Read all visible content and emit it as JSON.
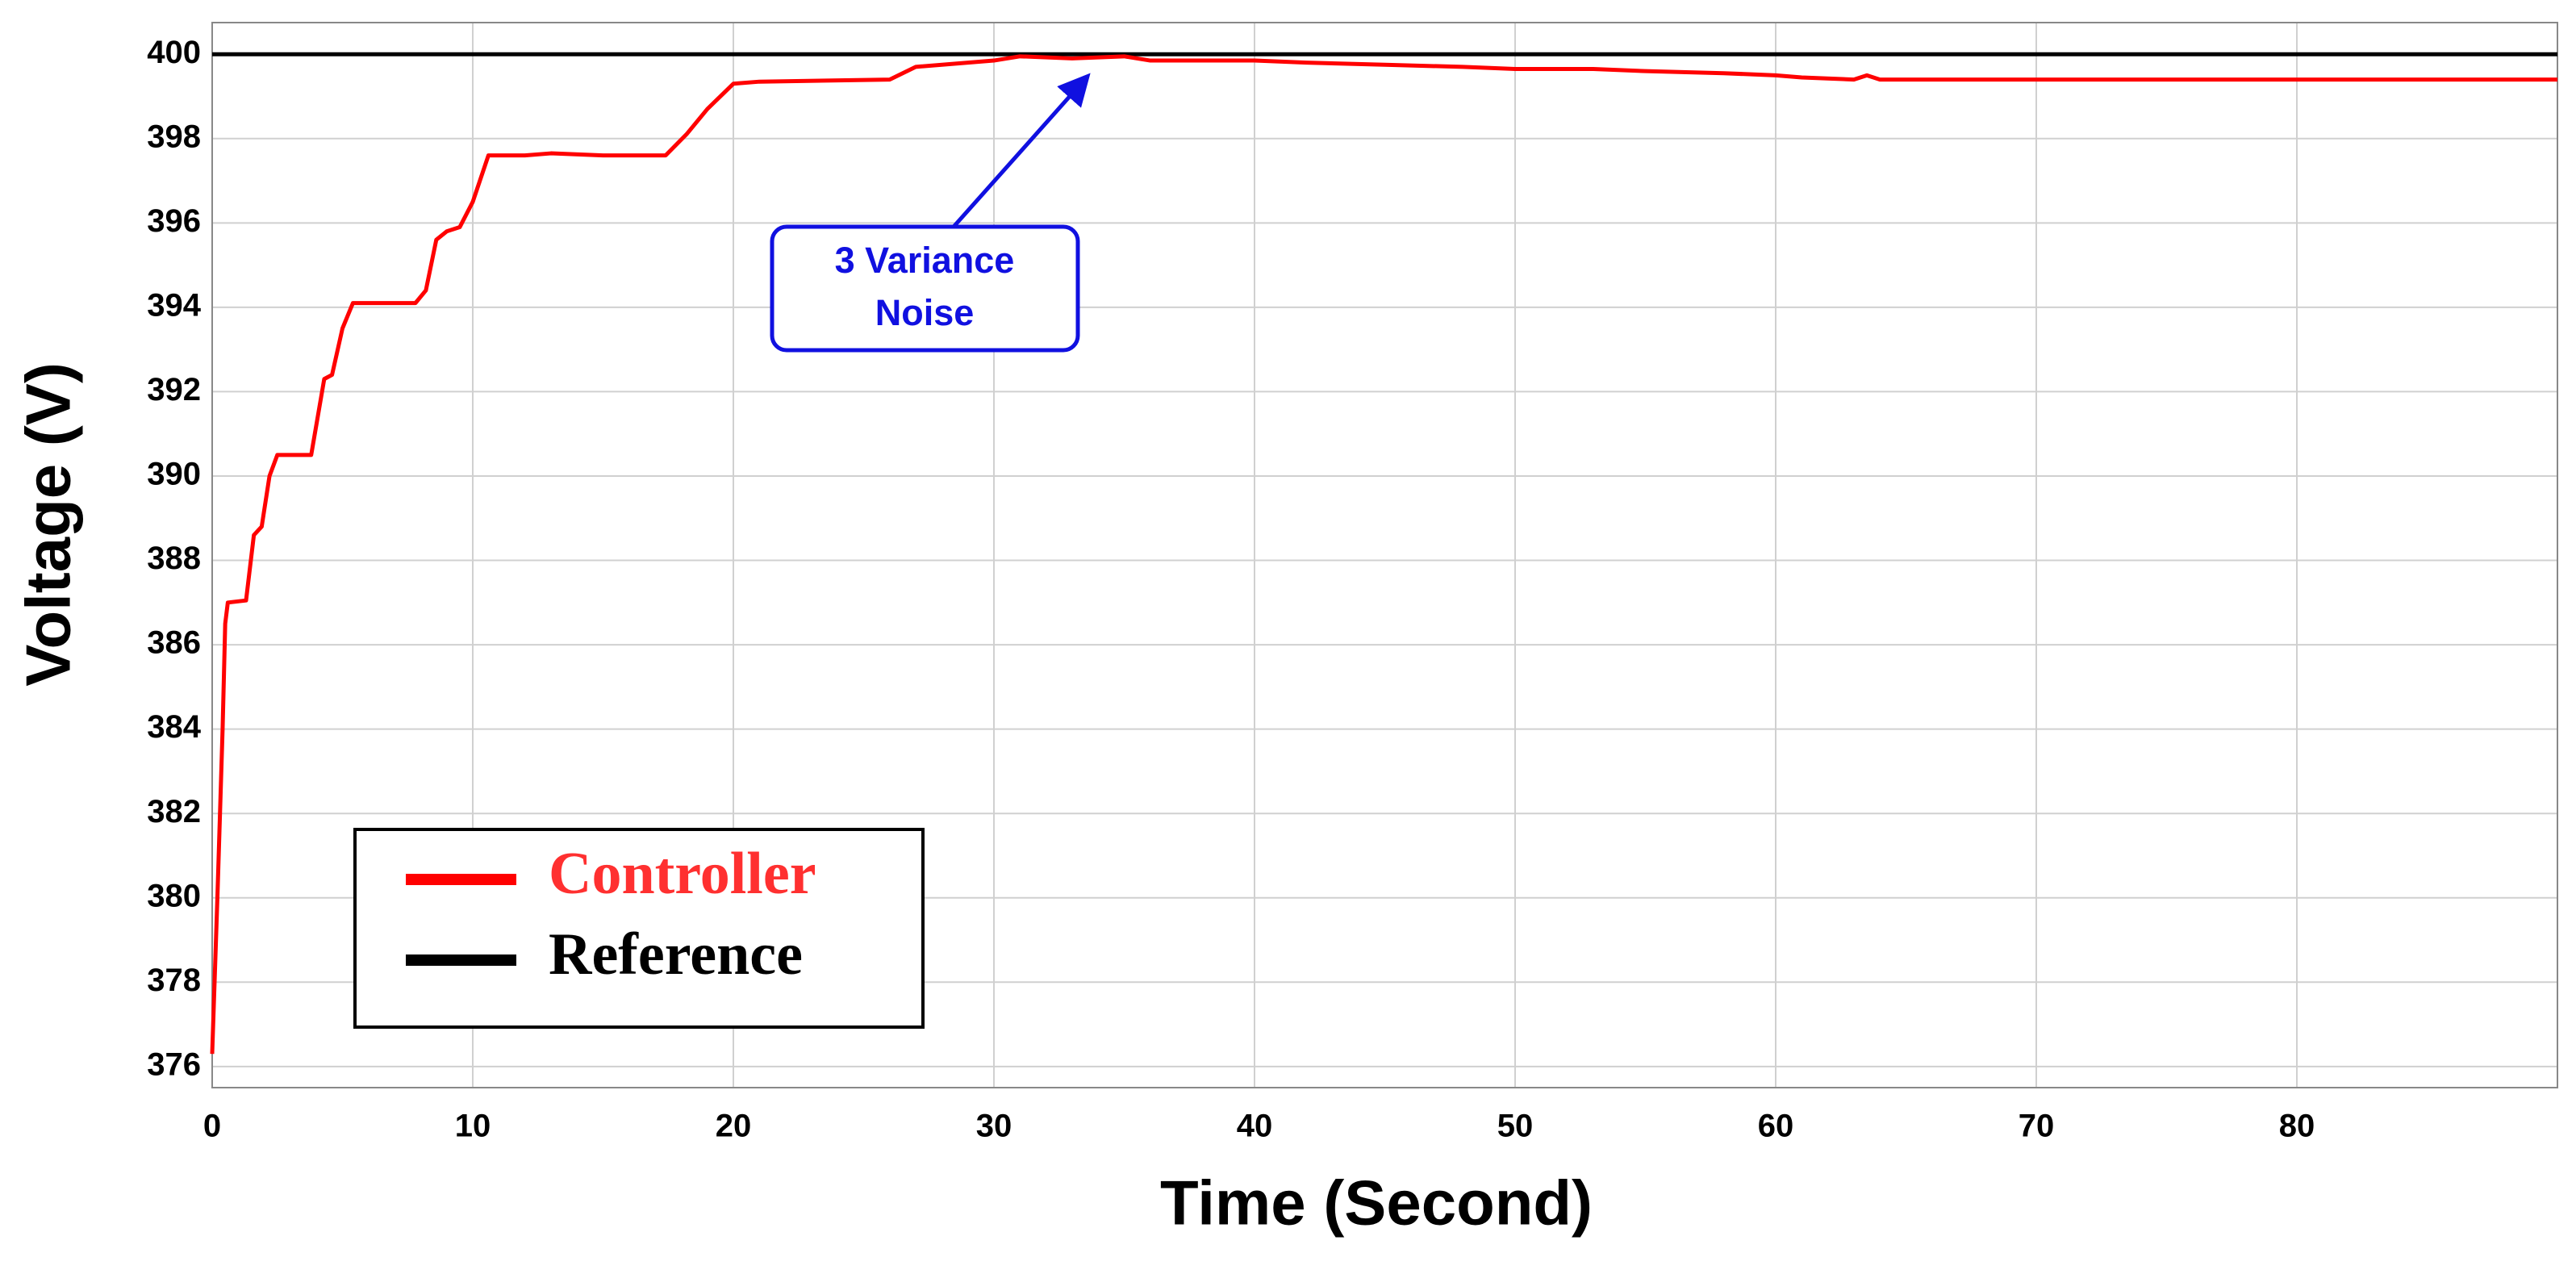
{
  "chart_data": {
    "type": "line",
    "xlabel": "Time (Second)",
    "ylabel": "Voltage (V)",
    "xlim": [
      0,
      90
    ],
    "ylim": [
      375.5,
      400.75
    ],
    "xticks": [
      0,
      10,
      20,
      30,
      40,
      50,
      60,
      70,
      80
    ],
    "yticks": [
      376,
      378,
      380,
      382,
      384,
      386,
      388,
      390,
      392,
      394,
      396,
      398,
      400
    ],
    "grid": true,
    "legend": "lower left",
    "annotation": [
      "3 Variance",
      "Noise"
    ],
    "series": [
      {
        "name": "Controller",
        "color": "#ff0000",
        "x": [
          0,
          0.2,
          0.4,
          0.5,
          0.6,
          1.3,
          1.6,
          1.9,
          2.2,
          2.5,
          3.8,
          4.3,
          4.6,
          5,
          5.4,
          7.8,
          8.2,
          8.6,
          9,
          9.5,
          10,
          10.6,
          12,
          13,
          15,
          17.4,
          18.2,
          19,
          20,
          21,
          26,
          27,
          30,
          31,
          33,
          35,
          36,
          38,
          40,
          42,
          45,
          48,
          50,
          53,
          55,
          58,
          60,
          61,
          63,
          63.5,
          64,
          90
        ],
        "values": [
          376.3,
          380,
          384,
          386.5,
          387,
          387.05,
          388.6,
          388.8,
          390,
          390.5,
          390.5,
          392.3,
          392.4,
          393.5,
          394.1,
          394.1,
          394.4,
          395.6,
          395.8,
          395.9,
          396.5,
          397.6,
          397.6,
          397.65,
          397.6,
          397.6,
          398.1,
          398.7,
          399.3,
          399.35,
          399.4,
          399.7,
          399.85,
          399.95,
          399.9,
          399.95,
          399.85,
          399.85,
          399.85,
          399.8,
          399.75,
          399.7,
          399.65,
          399.65,
          399.6,
          399.55,
          399.5,
          399.45,
          399.4,
          399.5,
          399.4,
          399.4
        ]
      },
      {
        "name": "Reference",
        "color": "#000000",
        "x": [
          0,
          90
        ],
        "values": [
          400,
          400
        ]
      }
    ]
  }
}
